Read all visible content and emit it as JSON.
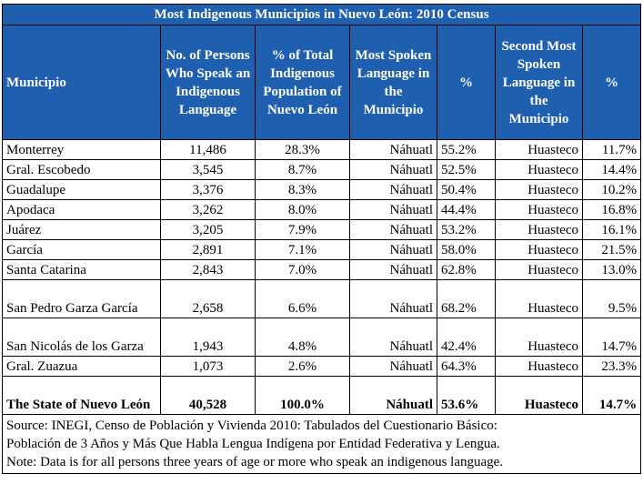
{
  "title": "Most Indigenous Municipios in Nuevo León: 2010 Census",
  "headers": [
    "Municipio",
    "No. of Persons Who Speak an Indigenous Language",
    "% of Total Indigenous Population of Nuevo León",
    "Most Spoken Language in the Municipio",
    "%",
    "Second Most Spoken Language in the Municipio",
    "%"
  ],
  "rows": [
    {
      "municipio": "Monterrey",
      "persons": "11,486",
      "pct_total": "28.3%",
      "lang1": "Náhuatl",
      "pct1": "55.2%",
      "lang2": "Huasteco",
      "pct2": "11.7%"
    },
    {
      "municipio": "Gral. Escobedo",
      "persons": "3,545",
      "pct_total": "8.7%",
      "lang1": "Náhuatl",
      "pct1": "52.5%",
      "lang2": "Huasteco",
      "pct2": "14.4%"
    },
    {
      "municipio": "Guadalupe",
      "persons": "3,376",
      "pct_total": "8.3%",
      "lang1": "Náhuatl",
      "pct1": "50.4%",
      "lang2": "Huasteco",
      "pct2": "10.2%"
    },
    {
      "municipio": "Apodaca",
      "persons": "3,262",
      "pct_total": "8.0%",
      "lang1": "Náhuatl",
      "pct1": "44.4%",
      "lang2": "Huasteco",
      "pct2": "16.8%"
    },
    {
      "municipio": "Juárez",
      "persons": "3,205",
      "pct_total": "7.9%",
      "lang1": "Náhuatl",
      "pct1": "53.2%",
      "lang2": "Huasteco",
      "pct2": "16.1%"
    },
    {
      "municipio": "García",
      "persons": "2,891",
      "pct_total": "7.1%",
      "lang1": "Náhuatl",
      "pct1": "58.0%",
      "lang2": "Huasteco",
      "pct2": "21.5%"
    },
    {
      "municipio": "Santa Catarina",
      "persons": "2,843",
      "pct_total": "7.0%",
      "lang1": "Náhuatl",
      "pct1": "62.8%",
      "lang2": "Huasteco",
      "pct2": "13.0%"
    },
    {
      "municipio": "San Pedro Garza García",
      "persons": "2,658",
      "pct_total": "6.6%",
      "lang1": "Náhuatl",
      "pct1": "68.2%",
      "lang2": "Huasteco",
      "pct2": "9.5%"
    },
    {
      "municipio": "San Nicolás de los Garza",
      "persons": "1,943",
      "pct_total": "4.8%",
      "lang1": "Náhuatl",
      "pct1": "42.4%",
      "lang2": "Huasteco",
      "pct2": "14.7%"
    },
    {
      "municipio": "Gral. Zuazua",
      "persons": "1,073",
      "pct_total": "2.6%",
      "lang1": "Náhuatl",
      "pct1": "64.3%",
      "lang2": "Huasteco",
      "pct2": "23.3%"
    }
  ],
  "total": {
    "municipio": "The State of Nuevo León",
    "persons": "40,528",
    "pct_total": "100.0%",
    "lang1": "Náhuatl",
    "pct1": "53.6%",
    "lang2": "Huasteco",
    "pct2": "14.7%"
  },
  "source_lines": [
    "Source:  INEGI, Censo de Población y Vivienda 2010: Tabulados del Cuestionario Básico:",
    "Población de 3 Años y Más Que Habla Lengua Indígena por Entidad Federativa y Lengua.",
    "Note: Data is for all persons three years of age or more who speak an indigenous language."
  ],
  "colors": {
    "header_bg": "#1f5fb0",
    "header_text": "#ffffff"
  }
}
